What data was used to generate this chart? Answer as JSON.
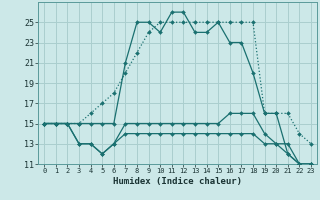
{
  "xlabel": "Humidex (Indice chaleur)",
  "background_color": "#cce8e8",
  "line_color": "#1a7070",
  "grid_color": "#aacece",
  "x_values": [
    0,
    1,
    2,
    3,
    4,
    5,
    6,
    7,
    8,
    9,
    10,
    11,
    12,
    13,
    14,
    15,
    16,
    17,
    18,
    19,
    20,
    21,
    22,
    23
  ],
  "line1": [
    15,
    15,
    15,
    15,
    15,
    15,
    15,
    21,
    25,
    25,
    24,
    26,
    26,
    24,
    24,
    25,
    23,
    23,
    20,
    16,
    16,
    12,
    11,
    11
  ],
  "line2": [
    15,
    15,
    15,
    15,
    16,
    17,
    18,
    20,
    22,
    24,
    25,
    25,
    25,
    25,
    25,
    25,
    25,
    25,
    25,
    16,
    16,
    16,
    14,
    13
  ],
  "line3": [
    15,
    15,
    15,
    13,
    13,
    12,
    13,
    15,
    15,
    15,
    15,
    15,
    15,
    15,
    15,
    15,
    16,
    16,
    16,
    14,
    13,
    13,
    11,
    11
  ],
  "line4": [
    15,
    15,
    15,
    13,
    13,
    12,
    13,
    14,
    14,
    14,
    14,
    14,
    14,
    14,
    14,
    14,
    14,
    14,
    14,
    13,
    13,
    12,
    11,
    11
  ],
  "ylim": [
    11,
    27
  ],
  "yticks": [
    11,
    13,
    15,
    17,
    19,
    21,
    23,
    25
  ],
  "xlim": [
    -0.5,
    23.5
  ],
  "xticks": [
    0,
    1,
    2,
    3,
    4,
    5,
    6,
    7,
    8,
    9,
    10,
    11,
    12,
    13,
    14,
    15,
    16,
    17,
    18,
    19,
    20,
    21,
    22,
    23
  ]
}
